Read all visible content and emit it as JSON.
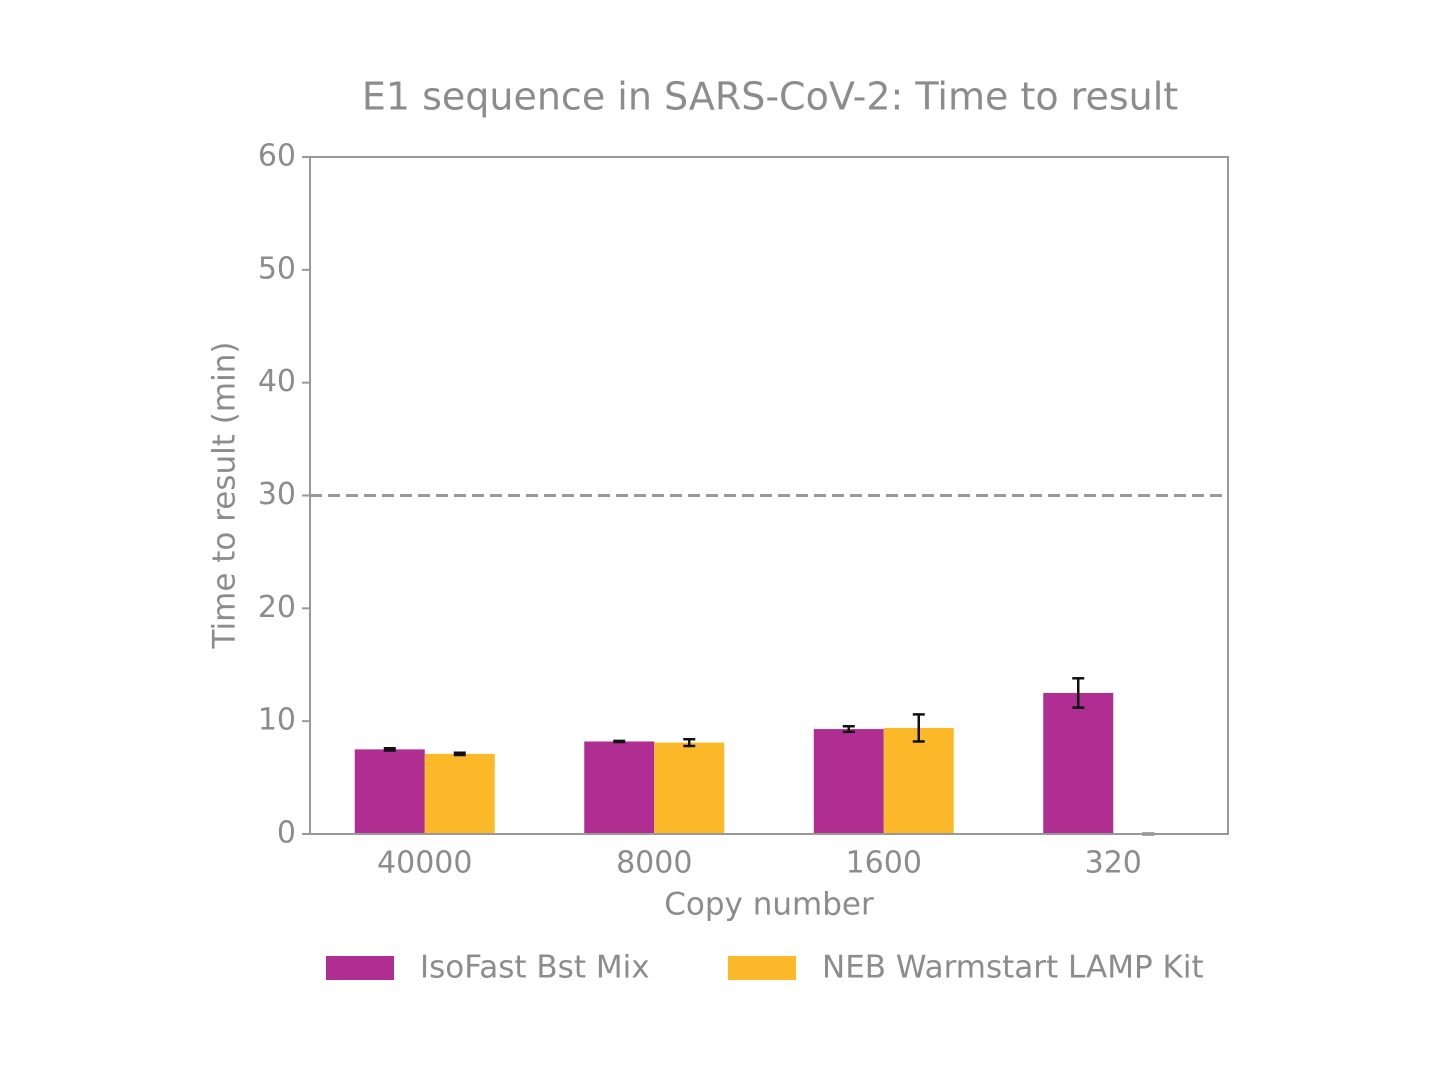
{
  "chart_data": {
    "type": "bar",
    "title": "E1 sequence in SARS-CoV-2: Time to result",
    "x_label": "Copy number",
    "y_label": "Time to result (min)",
    "categories": [
      "40000",
      "8000",
      "1600",
      "320"
    ],
    "series": [
      {
        "name": "IsoFast Bst Mix",
        "color": "#b02e92",
        "values": [
          7.5,
          8.2,
          9.3,
          12.5
        ],
        "errors": [
          0.1,
          0.05,
          0.25,
          1.3
        ]
      },
      {
        "name": "NEB Warmstart LAMP Kit",
        "color": "#fbb829",
        "values": [
          7.1,
          8.1,
          9.4,
          0
        ],
        "errors": [
          0.1,
          0.3,
          1.2,
          0
        ]
      }
    ],
    "threshold": 30,
    "ylim": [
      0,
      60
    ],
    "yticks": [
      0,
      10,
      20,
      30,
      40,
      50,
      60
    ],
    "legend": "bottom"
  }
}
